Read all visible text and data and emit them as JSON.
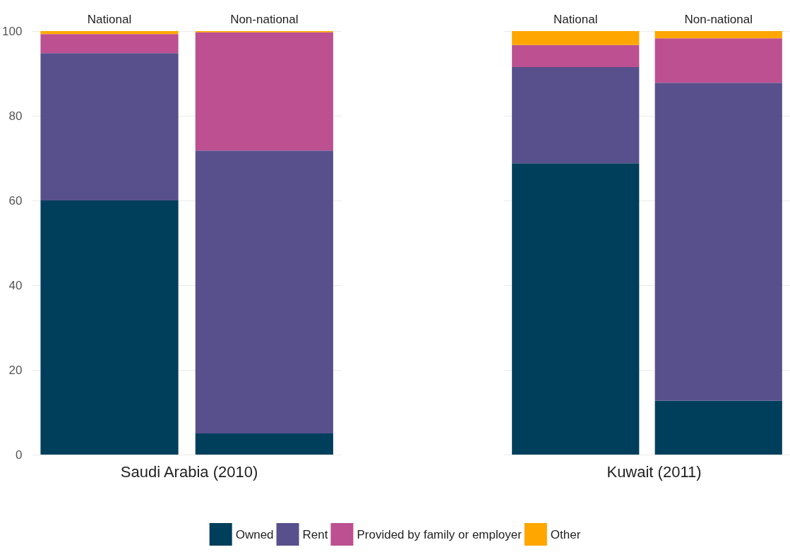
{
  "chart_data": [
    {
      "type": "bar",
      "stacked": true,
      "xlabel": "Saudi Arabia (2010)",
      "categories": [
        "National",
        "Non-national"
      ],
      "ylim": [
        0,
        100
      ],
      "yticks": [
        0,
        20,
        40,
        60,
        80,
        100
      ],
      "grid": "y",
      "legend": "bottom",
      "series": [
        {
          "name": "Owned",
          "color": "#003f5c",
          "values": [
            60,
            5
          ]
        },
        {
          "name": "Rent",
          "color": "#58508d",
          "values": [
            34.8,
            66.8
          ]
        },
        {
          "name": "Provided by family or employer",
          "color": "#bc5090",
          "values": [
            4.5,
            27.9
          ]
        },
        {
          "name": "Other",
          "color": "#ffa600",
          "values": [
            0.7,
            0.3
          ]
        }
      ]
    },
    {
      "type": "bar",
      "stacked": true,
      "xlabel": "Kuwait (2011)",
      "categories": [
        "National",
        "Non-national"
      ],
      "ylim": [
        0,
        100
      ],
      "yticks": [
        0,
        20,
        40,
        60,
        80,
        100
      ],
      "grid": "y",
      "tick_labels": "x",
      "series": [
        {
          "color": "#003f5c",
          "values": [
            68.8,
            12.7
          ]
        },
        {
          "color": "#58508d",
          "values": [
            22.7,
            75.1
          ]
        },
        {
          "color": "#bc5090",
          "values": [
            5.2,
            10.5
          ]
        },
        {
          "color": "#ffa600",
          "values": [
            3.3,
            1.7
          ]
        }
      ]
    }
  ]
}
